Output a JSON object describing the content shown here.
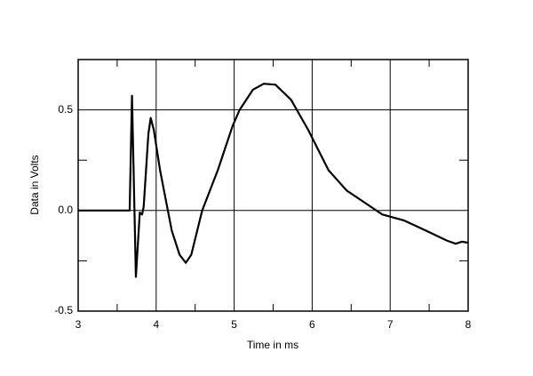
{
  "chart_data": {
    "type": "line",
    "x_label": "Time in ms",
    "y_label": "Data in Volts",
    "xlim": [
      3,
      8
    ],
    "ylim": [
      -0.5,
      0.75
    ],
    "xticks": [
      3,
      4,
      5,
      6,
      7,
      8
    ],
    "yticks": [
      -0.5,
      {
        "value": 0,
        "label": "0.0"
      },
      0.5
    ],
    "xminorticks": [
      3.5,
      4.5,
      5.5,
      6.5,
      7.5
    ],
    "yminorticks": [
      -0.25,
      0.25
    ],
    "grid": true,
    "series": [
      {
        "color": "#000000",
        "x": [
          3.0,
          3.66,
          3.69,
          3.74,
          3.79,
          3.82,
          3.84,
          3.87,
          3.9,
          3.93,
          3.97,
          4.05,
          4.1,
          4.2,
          4.3,
          4.38,
          4.45,
          4.59,
          4.79,
          4.98,
          5.07,
          5.24,
          5.38,
          5.53,
          5.73,
          5.95,
          6.21,
          6.44,
          6.67,
          6.9,
          7.18,
          7.46,
          7.73,
          7.84,
          7.92,
          8.0
        ],
        "values": [
          0,
          0,
          0.57,
          -0.33,
          -0.01,
          -0.02,
          0.02,
          0.2,
          0.38,
          0.46,
          0.4,
          0.2,
          0.1,
          -0.1,
          -0.22,
          -0.26,
          -0.22,
          0,
          0.2,
          0.42,
          0.5,
          0.6,
          0.63,
          0.625,
          0.55,
          0.4,
          0.2,
          0.1,
          0.04,
          -0.02,
          -0.05,
          -0.1,
          -0.15,
          -0.165,
          -0.155,
          -0.16
        ]
      }
    ]
  }
}
